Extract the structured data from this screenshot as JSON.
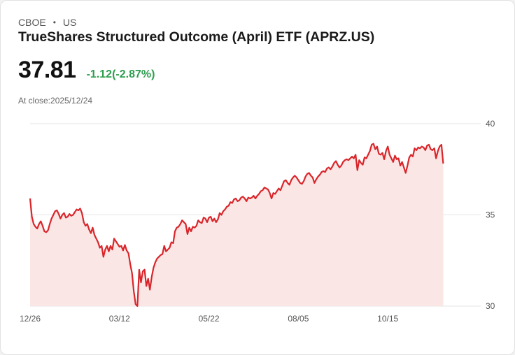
{
  "header": {
    "exchange": "CBOE",
    "separator": "•",
    "market": "US",
    "title": "TrueShares Structured Outcome (April) ETF (APRZ.US)"
  },
  "quote": {
    "price": "37.81",
    "change": "-1.12(-2.87%)",
    "change_color": "#2e9e4f",
    "close_label": "At close:",
    "close_date": "2025/12/24"
  },
  "colors": {
    "line": "#d9262b",
    "fill": "#fbe6e6",
    "grid": "#e6e6e6"
  },
  "chart_data": {
    "type": "area",
    "title": "",
    "xlabel": "",
    "ylabel": "",
    "ylim": [
      30,
      40
    ],
    "yticks": [
      40,
      35,
      30
    ],
    "x_tick_labels": [
      "12/26",
      "03/12",
      "05/22",
      "08/05",
      "10/15"
    ],
    "x_tick_index": [
      0,
      50,
      100,
      150,
      200
    ],
    "x_count": 250,
    "grid": true,
    "series": [
      {
        "name": "APRZ.US",
        "points": [
          [
            0,
            35.9
          ],
          [
            1,
            34.9
          ],
          [
            2,
            34.5
          ],
          [
            3,
            34.35
          ],
          [
            4,
            34.25
          ],
          [
            5,
            34.5
          ],
          [
            6,
            34.65
          ],
          [
            7,
            34.4
          ],
          [
            8,
            34.1
          ],
          [
            9,
            34.05
          ],
          [
            10,
            34.15
          ],
          [
            11,
            34.5
          ],
          [
            12,
            34.8
          ],
          [
            13,
            35.0
          ],
          [
            14,
            35.2
          ],
          [
            15,
            35.25
          ],
          [
            16,
            35.05
          ],
          [
            17,
            34.8
          ],
          [
            18,
            35.0
          ],
          [
            19,
            35.1
          ],
          [
            20,
            34.85
          ],
          [
            21,
            34.9
          ],
          [
            22,
            35.05
          ],
          [
            23,
            34.95
          ],
          [
            24,
            35.0
          ],
          [
            25,
            35.15
          ],
          [
            26,
            35.3
          ],
          [
            27,
            35.25
          ],
          [
            28,
            35.35
          ],
          [
            29,
            35.1
          ],
          [
            30,
            34.6
          ],
          [
            31,
            34.4
          ],
          [
            32,
            34.5
          ],
          [
            33,
            34.2
          ],
          [
            34,
            34.0
          ],
          [
            35,
            34.3
          ],
          [
            36,
            33.9
          ],
          [
            37,
            33.7
          ],
          [
            38,
            33.5
          ],
          [
            39,
            33.2
          ],
          [
            40,
            33.3
          ],
          [
            41,
            32.7
          ],
          [
            42,
            33.1
          ],
          [
            43,
            33.3
          ],
          [
            44,
            33.0
          ],
          [
            45,
            33.3
          ],
          [
            46,
            33.1
          ],
          [
            47,
            33.7
          ],
          [
            48,
            33.55
          ],
          [
            49,
            33.4
          ],
          [
            50,
            33.25
          ],
          [
            51,
            33.3
          ],
          [
            52,
            33.05
          ],
          [
            53,
            33.35
          ],
          [
            54,
            33.05
          ],
          [
            55,
            32.9
          ],
          [
            56,
            32.3
          ],
          [
            57,
            31.8
          ],
          [
            58,
            30.8
          ],
          [
            59,
            30.1
          ],
          [
            60,
            30.0
          ],
          [
            61,
            32.0
          ],
          [
            62,
            31.3
          ],
          [
            63,
            31.9
          ],
          [
            64,
            32.0
          ],
          [
            65,
            31.1
          ],
          [
            66,
            31.5
          ],
          [
            67,
            30.9
          ],
          [
            68,
            31.6
          ],
          [
            69,
            32.1
          ],
          [
            70,
            32.4
          ],
          [
            71,
            32.6
          ],
          [
            72,
            32.7
          ],
          [
            73,
            32.8
          ],
          [
            74,
            32.85
          ],
          [
            75,
            33.3
          ],
          [
            76,
            33.0
          ],
          [
            77,
            33.1
          ],
          [
            78,
            33.2
          ],
          [
            79,
            33.5
          ],
          [
            80,
            33.45
          ],
          [
            81,
            34.1
          ],
          [
            82,
            34.3
          ],
          [
            83,
            34.35
          ],
          [
            84,
            34.5
          ],
          [
            85,
            34.7
          ],
          [
            86,
            34.6
          ],
          [
            87,
            34.5
          ],
          [
            88,
            33.95
          ],
          [
            89,
            34.3
          ],
          [
            90,
            34.1
          ],
          [
            91,
            34.35
          ],
          [
            92,
            34.3
          ],
          [
            93,
            34.4
          ],
          [
            94,
            34.7
          ],
          [
            95,
            34.6
          ],
          [
            96,
            34.55
          ],
          [
            97,
            34.85
          ],
          [
            98,
            34.8
          ],
          [
            99,
            34.6
          ],
          [
            100,
            34.85
          ],
          [
            101,
            34.9
          ],
          [
            102,
            34.65
          ],
          [
            103,
            34.8
          ],
          [
            104,
            34.6
          ],
          [
            105,
            34.75
          ],
          [
            106,
            35.1
          ],
          [
            107,
            35.0
          ],
          [
            108,
            35.2
          ],
          [
            109,
            35.3
          ],
          [
            110,
            35.45
          ],
          [
            111,
            35.5
          ],
          [
            112,
            35.7
          ],
          [
            113,
            35.65
          ],
          [
            114,
            35.85
          ],
          [
            115,
            35.9
          ],
          [
            116,
            35.75
          ],
          [
            117,
            35.8
          ],
          [
            118,
            35.95
          ],
          [
            119,
            36.0
          ],
          [
            120,
            35.9
          ],
          [
            121,
            35.75
          ],
          [
            122,
            35.95
          ],
          [
            123,
            35.9
          ],
          [
            124,
            35.95
          ],
          [
            125,
            36.05
          ],
          [
            126,
            35.9
          ],
          [
            127,
            36.05
          ],
          [
            128,
            36.15
          ],
          [
            129,
            36.3
          ],
          [
            130,
            36.35
          ],
          [
            131,
            36.5
          ],
          [
            132,
            36.45
          ],
          [
            133,
            36.4
          ],
          [
            134,
            36.2
          ],
          [
            135,
            35.9
          ],
          [
            136,
            36.2
          ],
          [
            137,
            36.15
          ],
          [
            138,
            36.3
          ],
          [
            139,
            36.45
          ],
          [
            140,
            36.35
          ],
          [
            141,
            36.6
          ],
          [
            142,
            36.85
          ],
          [
            143,
            36.9
          ],
          [
            144,
            36.75
          ],
          [
            145,
            36.65
          ],
          [
            146,
            36.9
          ],
          [
            147,
            37.05
          ],
          [
            148,
            37.15
          ],
          [
            149,
            37.05
          ],
          [
            150,
            36.9
          ],
          [
            151,
            36.75
          ],
          [
            152,
            36.7
          ],
          [
            153,
            36.85
          ],
          [
            154,
            37.1
          ],
          [
            155,
            37.25
          ],
          [
            156,
            37.3
          ],
          [
            157,
            37.15
          ],
          [
            158,
            37.05
          ],
          [
            159,
            36.75
          ],
          [
            160,
            36.95
          ],
          [
            161,
            37.1
          ],
          [
            162,
            37.2
          ],
          [
            163,
            37.35
          ],
          [
            164,
            37.4
          ],
          [
            165,
            37.35
          ],
          [
            166,
            37.55
          ],
          [
            167,
            37.6
          ],
          [
            168,
            37.5
          ],
          [
            169,
            37.65
          ],
          [
            170,
            37.85
          ],
          [
            171,
            37.95
          ],
          [
            172,
            37.75
          ],
          [
            173,
            37.6
          ],
          [
            174,
            37.7
          ],
          [
            175,
            37.9
          ],
          [
            176,
            38.0
          ],
          [
            177,
            38.05
          ],
          [
            178,
            38.0
          ],
          [
            179,
            38.1
          ],
          [
            180,
            38.2
          ],
          [
            181,
            38.1
          ],
          [
            182,
            38.3
          ],
          [
            183,
            37.45
          ],
          [
            184,
            38.0
          ],
          [
            185,
            37.85
          ],
          [
            186,
            37.75
          ],
          [
            187,
            38.15
          ],
          [
            188,
            38.1
          ],
          [
            189,
            38.3
          ],
          [
            190,
            38.5
          ],
          [
            191,
            38.85
          ],
          [
            192,
            38.9
          ],
          [
            193,
            38.6
          ],
          [
            194,
            38.75
          ],
          [
            195,
            38.35
          ],
          [
            196,
            38.3
          ],
          [
            197,
            38.4
          ],
          [
            198,
            38.05
          ],
          [
            199,
            38.5
          ],
          [
            200,
            38.75
          ],
          [
            201,
            38.3
          ],
          [
            202,
            38.1
          ],
          [
            203,
            37.9
          ],
          [
            204,
            38.25
          ],
          [
            205,
            38.05
          ],
          [
            206,
            38.1
          ],
          [
            207,
            37.7
          ],
          [
            208,
            37.9
          ],
          [
            209,
            37.6
          ],
          [
            210,
            37.3
          ],
          [
            211,
            37.7
          ],
          [
            212,
            38.15
          ],
          [
            213,
            38.3
          ],
          [
            214,
            38.2
          ],
          [
            215,
            38.65
          ],
          [
            216,
            38.55
          ],
          [
            217,
            38.7
          ],
          [
            218,
            38.65
          ],
          [
            219,
            38.75
          ],
          [
            220,
            38.7
          ],
          [
            221,
            38.55
          ],
          [
            222,
            38.8
          ],
          [
            223,
            38.85
          ],
          [
            224,
            38.6
          ],
          [
            225,
            38.55
          ],
          [
            226,
            38.65
          ],
          [
            227,
            38.1
          ],
          [
            228,
            38.5
          ],
          [
            229,
            38.75
          ],
          [
            230,
            38.85
          ],
          [
            231,
            37.81
          ]
        ]
      }
    ]
  }
}
